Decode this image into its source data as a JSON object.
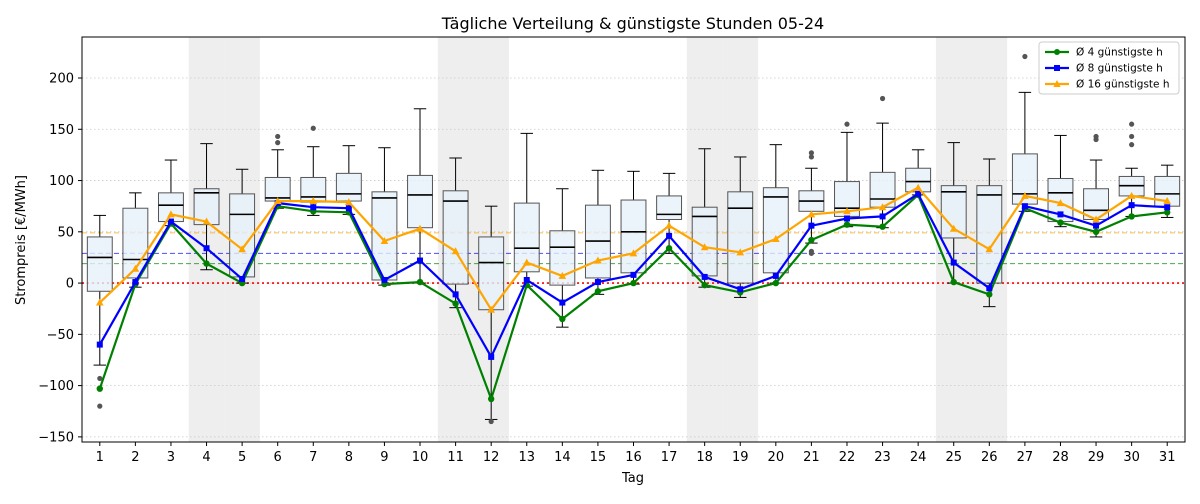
{
  "chart_data": {
    "type": "box",
    "title": "Tägliche Verteilung & günstigste Stunden 05-24",
    "xlabel": "Tag",
    "ylabel": "Strompreis [€/MWh]",
    "ylim": [
      -155,
      240
    ],
    "xlim": [
      0.5,
      31.5
    ],
    "yticks": [
      -150,
      -100,
      -50,
      0,
      50,
      100,
      150,
      200
    ],
    "categories": [
      "1",
      "2",
      "3",
      "4",
      "5",
      "6",
      "7",
      "8",
      "9",
      "10",
      "11",
      "12",
      "13",
      "14",
      "15",
      "16",
      "17",
      "18",
      "19",
      "20",
      "21",
      "22",
      "23",
      "24",
      "25",
      "26",
      "27",
      "28",
      "29",
      "30",
      "31"
    ],
    "weekend_days": [
      4,
      5,
      11,
      12,
      18,
      19,
      25,
      26
    ],
    "grid": "y dotted",
    "legend_position": "upper right",
    "colors": {
      "g4": "#008000",
      "g8": "#0000ff",
      "g16": "#ffa500",
      "zero": "#ff0000",
      "box_fill": "#e6f0fa",
      "box_edge": "#555555",
      "weekend": "#e5e5e5"
    },
    "boxes": [
      {
        "day": 1,
        "q1": -8,
        "med": 25,
        "q3": 45,
        "lo": -80,
        "hi": 66,
        "fl": [
          -93,
          -120
        ]
      },
      {
        "day": 2,
        "q1": 5,
        "med": 23,
        "q3": 73,
        "lo": -4,
        "hi": 88,
        "fl": []
      },
      {
        "day": 3,
        "q1": 60,
        "med": 76,
        "q3": 88,
        "lo": 56,
        "hi": 120,
        "fl": []
      },
      {
        "day": 4,
        "q1": 57,
        "med": 88,
        "q3": 92,
        "lo": 13,
        "hi": 136,
        "fl": []
      },
      {
        "day": 5,
        "q1": 6,
        "med": 67,
        "q3": 87,
        "lo": 0,
        "hi": 111,
        "fl": []
      },
      {
        "day": 6,
        "q1": 80,
        "med": 83,
        "q3": 103,
        "lo": 73,
        "hi": 130,
        "fl": [
          137,
          143
        ]
      },
      {
        "day": 7,
        "q1": 79,
        "med": 84,
        "q3": 103,
        "lo": 66,
        "hi": 133,
        "fl": [
          151
        ]
      },
      {
        "day": 8,
        "q1": 80,
        "med": 87,
        "q3": 107,
        "lo": 67,
        "hi": 134,
        "fl": []
      },
      {
        "day": 9,
        "q1": 3,
        "med": 83,
        "q3": 89,
        "lo": -2,
        "hi": 132,
        "fl": []
      },
      {
        "day": 10,
        "q1": 54,
        "med": 86,
        "q3": 105,
        "lo": 0,
        "hi": 170,
        "fl": []
      },
      {
        "day": 11,
        "q1": -1,
        "med": 80,
        "q3": 90,
        "lo": -24,
        "hi": 122,
        "fl": []
      },
      {
        "day": 12,
        "q1": -26,
        "med": 20,
        "q3": 45,
        "lo": -133,
        "hi": 75,
        "fl": [
          -135
        ]
      },
      {
        "day": 13,
        "q1": 11,
        "med": 34,
        "q3": 78,
        "lo": -3,
        "hi": 146,
        "fl": []
      },
      {
        "day": 14,
        "q1": -2,
        "med": 35,
        "q3": 51,
        "lo": -43,
        "hi": 92,
        "fl": []
      },
      {
        "day": 15,
        "q1": 5,
        "med": 41,
        "q3": 76,
        "lo": -11,
        "hi": 110,
        "fl": []
      },
      {
        "day": 16,
        "q1": 10,
        "med": 50,
        "q3": 81,
        "lo": -1,
        "hi": 109,
        "fl": []
      },
      {
        "day": 17,
        "q1": 62,
        "med": 67,
        "q3": 85,
        "lo": 29,
        "hi": 107,
        "fl": []
      },
      {
        "day": 18,
        "q1": 7,
        "med": 65,
        "q3": 74,
        "lo": -4,
        "hi": 131,
        "fl": []
      },
      {
        "day": 19,
        "q1": 0,
        "med": 73,
        "q3": 89,
        "lo": -14,
        "hi": 123,
        "fl": []
      },
      {
        "day": 20,
        "q1": 10,
        "med": 84,
        "q3": 93,
        "lo": 0,
        "hi": 135,
        "fl": []
      },
      {
        "day": 21,
        "q1": 70,
        "med": 80,
        "q3": 90,
        "lo": 39,
        "hi": 112,
        "fl": [
          123,
          127,
          29,
          31
        ]
      },
      {
        "day": 22,
        "q1": 65,
        "med": 73,
        "q3": 99,
        "lo": 55,
        "hi": 147,
        "fl": [
          155
        ]
      },
      {
        "day": 23,
        "q1": 74,
        "med": 82,
        "q3": 108,
        "lo": 54,
        "hi": 156,
        "fl": [
          180
        ]
      },
      {
        "day": 24,
        "q1": 89,
        "med": 99,
        "q3": 112,
        "lo": 86,
        "hi": 130,
        "fl": []
      },
      {
        "day": 25,
        "q1": 44,
        "med": 89,
        "q3": 95,
        "lo": 0,
        "hi": 137,
        "fl": []
      },
      {
        "day": 26,
        "q1": 0,
        "med": 86,
        "q3": 95,
        "lo": -23,
        "hi": 121,
        "fl": []
      },
      {
        "day": 27,
        "q1": 77,
        "med": 87,
        "q3": 126,
        "lo": 70,
        "hi": 186,
        "fl": [
          221
        ]
      },
      {
        "day": 28,
        "q1": 60,
        "med": 88,
        "q3": 102,
        "lo": 55,
        "hi": 144,
        "fl": []
      },
      {
        "day": 29,
        "q1": 62,
        "med": 71,
        "q3": 92,
        "lo": 45,
        "hi": 120,
        "fl": [
          140,
          143
        ]
      },
      {
        "day": 30,
        "q1": 85,
        "med": 95,
        "q3": 104,
        "lo": 65,
        "hi": 112,
        "fl": [
          155,
          143,
          135
        ]
      },
      {
        "day": 31,
        "q1": 75,
        "med": 87,
        "q3": 104,
        "lo": 64,
        "hi": 115,
        "fl": []
      }
    ],
    "series": [
      {
        "name": "Ø 4 günstigste h",
        "key": "g4",
        "marker": "circle",
        "values": [
          -103,
          -1,
          58,
          19,
          0,
          75,
          70,
          69,
          -1,
          1,
          -20,
          -113,
          -2,
          -35,
          -8,
          0,
          34,
          -2,
          -9,
          0,
          42,
          57,
          55,
          86,
          1,
          -11,
          73,
          59,
          50,
          65,
          69
        ]
      },
      {
        "name": "Ø 8 günstigste h",
        "key": "g8",
        "marker": "square",
        "values": [
          -60,
          1,
          60,
          34,
          4,
          78,
          74,
          73,
          3,
          22,
          -11,
          -72,
          3,
          -19,
          1,
          8,
          46,
          6,
          -6,
          7,
          56,
          63,
          65,
          87,
          20,
          -5,
          75,
          67,
          56,
          76,
          74
        ]
      },
      {
        "name": "Ø 16 günstigste h",
        "key": "g16",
        "marker": "triangle",
        "values": [
          -19,
          14,
          67,
          60,
          33,
          80,
          80,
          79,
          41,
          53,
          31,
          -26,
          20,
          7,
          22,
          29,
          56,
          35,
          30,
          43,
          67,
          70,
          74,
          93,
          53,
          33,
          85,
          78,
          62,
          85,
          80
        ]
      }
    ],
    "hlines": [
      {
        "y": 0,
        "key": "zero",
        "style": "dotted"
      },
      {
        "y": 49,
        "key": "g16",
        "style": "dashed"
      },
      {
        "y": 29,
        "key": "g8",
        "style": "dashed"
      },
      {
        "y": 19,
        "key": "g4",
        "style": "dashed"
      }
    ]
  }
}
